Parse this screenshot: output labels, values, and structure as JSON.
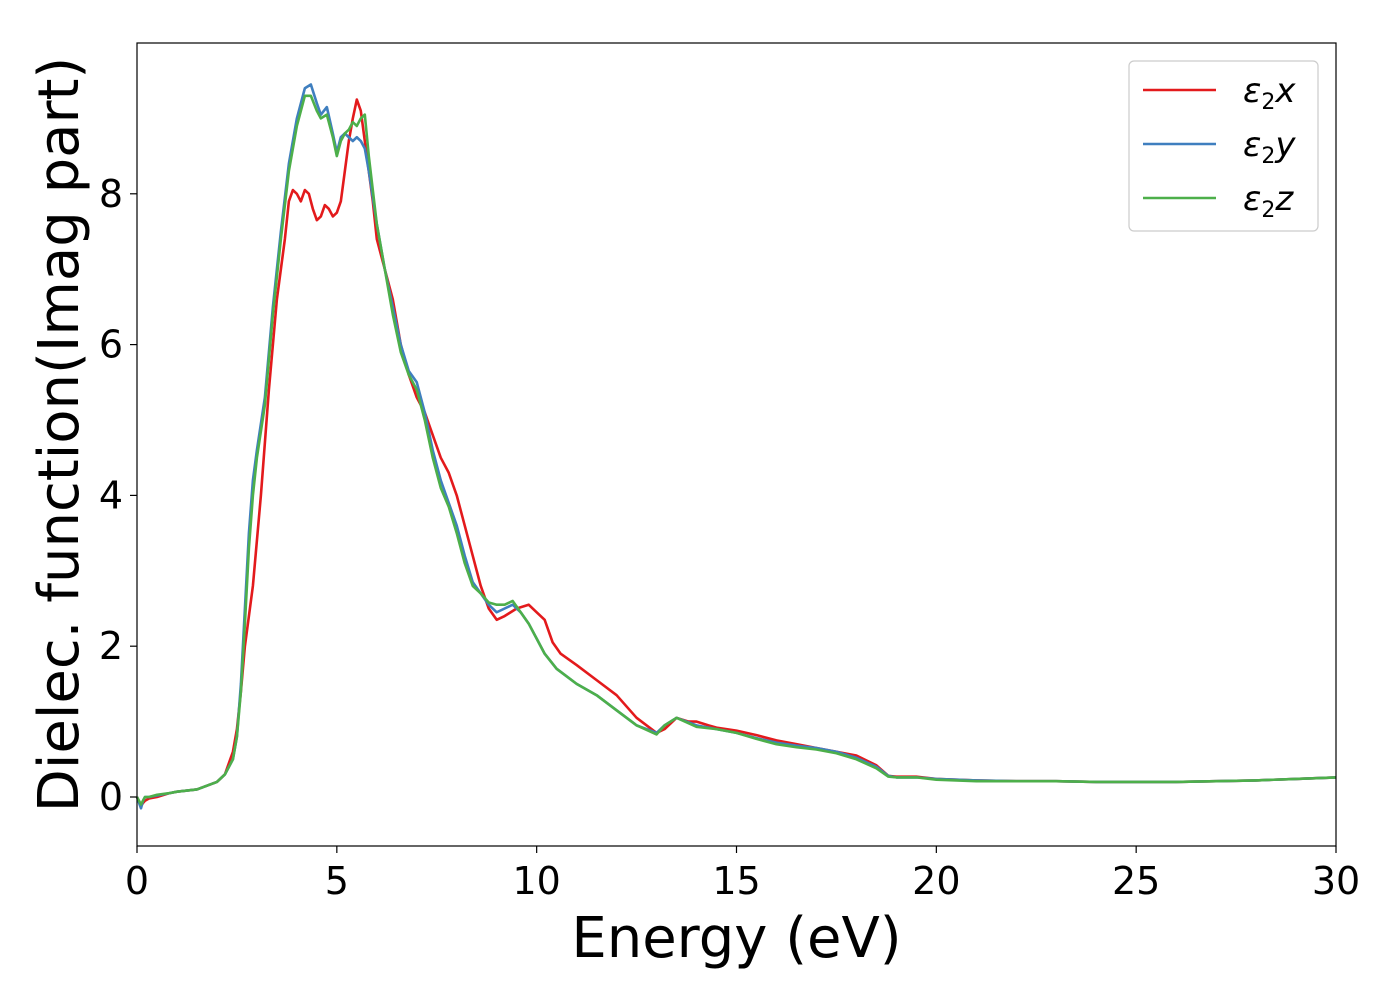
{
  "chart_data": {
    "type": "line",
    "title": "",
    "xlabel": "Energy (eV)",
    "ylabel": "Dielec. function(Imag part)",
    "xlim": [
      0,
      30
    ],
    "ylim": [
      -0.65,
      10.0
    ],
    "xticks": [
      0,
      5,
      10,
      15,
      20,
      25,
      30
    ],
    "xtick_labels": [
      "0",
      "5",
      "10",
      "15",
      "20",
      "25",
      "30"
    ],
    "yticks": [
      0,
      2,
      4,
      6,
      8
    ],
    "ytick_labels": [
      "0",
      "2",
      "4",
      "6",
      "8"
    ],
    "grid": false,
    "legend_position": "top-right",
    "series": [
      {
        "name": "ε2x",
        "name_main": "ε",
        "name_sub": "2",
        "name_suffix": "x",
        "color": "#e31a1c",
        "x": [
          0,
          0.1,
          0.15,
          0.2,
          0.3,
          0.5,
          0.8,
          1.0,
          1.5,
          2.0,
          2.2,
          2.4,
          2.5,
          2.6,
          2.7,
          2.8,
          2.9,
          3.0,
          3.1,
          3.2,
          3.3,
          3.4,
          3.5,
          3.6,
          3.7,
          3.8,
          3.9,
          4.0,
          4.1,
          4.2,
          4.3,
          4.4,
          4.5,
          4.6,
          4.7,
          4.8,
          4.9,
          5.0,
          5.1,
          5.2,
          5.3,
          5.4,
          5.5,
          5.6,
          5.7,
          5.8,
          5.9,
          6.0,
          6.2,
          6.4,
          6.6,
          6.8,
          7.0,
          7.2,
          7.4,
          7.6,
          7.8,
          8.0,
          8.2,
          8.4,
          8.6,
          8.8,
          9.0,
          9.2,
          9.5,
          9.8,
          10.0,
          10.2,
          10.4,
          10.6,
          11.0,
          11.5,
          12.0,
          12.5,
          13.0,
          13.2,
          13.5,
          13.8,
          14.0,
          14.3,
          14.5,
          15.0,
          15.5,
          16.0,
          16.5,
          17.0,
          17.5,
          18.0,
          18.5,
          18.8,
          19.0,
          19.5,
          20.0,
          21.0,
          22.0,
          23.0,
          24.0,
          25.0,
          26.0,
          27.0,
          28.0,
          29.0,
          30.0
        ],
        "y": [
          0.0,
          -0.12,
          -0.08,
          -0.05,
          -0.02,
          0.0,
          0.05,
          0.07,
          0.1,
          0.2,
          0.3,
          0.6,
          0.9,
          1.4,
          2.0,
          2.4,
          2.8,
          3.4,
          4.0,
          4.7,
          5.4,
          6.0,
          6.6,
          7.0,
          7.4,
          7.9,
          8.05,
          8.0,
          7.9,
          8.05,
          8.0,
          7.8,
          7.65,
          7.7,
          7.85,
          7.8,
          7.7,
          7.75,
          7.9,
          8.3,
          8.7,
          9.0,
          9.25,
          9.1,
          8.7,
          8.3,
          7.9,
          7.4,
          7.0,
          6.6,
          6.0,
          5.6,
          5.3,
          5.1,
          4.8,
          4.5,
          4.3,
          4.0,
          3.6,
          3.2,
          2.8,
          2.5,
          2.35,
          2.4,
          2.5,
          2.55,
          2.45,
          2.35,
          2.05,
          1.9,
          1.75,
          1.55,
          1.35,
          1.05,
          0.85,
          0.9,
          1.05,
          1.0,
          1.0,
          0.95,
          0.92,
          0.88,
          0.82,
          0.75,
          0.7,
          0.65,
          0.6,
          0.55,
          0.42,
          0.28,
          0.27,
          0.27,
          0.24,
          0.22,
          0.21,
          0.21,
          0.2,
          0.2,
          0.2,
          0.21,
          0.22,
          0.24,
          0.26
        ]
      },
      {
        "name": "ε2y",
        "name_main": "ε",
        "name_sub": "2",
        "name_suffix": "y",
        "color": "#3f7fbf",
        "x": [
          0,
          0.1,
          0.15,
          0.2,
          0.3,
          0.5,
          0.8,
          1.0,
          1.5,
          2.0,
          2.2,
          2.4,
          2.5,
          2.6,
          2.7,
          2.8,
          2.9,
          3.0,
          3.2,
          3.4,
          3.6,
          3.8,
          4.0,
          4.2,
          4.35,
          4.5,
          4.6,
          4.75,
          4.9,
          5.0,
          5.1,
          5.2,
          5.3,
          5.4,
          5.5,
          5.6,
          5.7,
          5.8,
          6.0,
          6.2,
          6.4,
          6.6,
          6.8,
          7.0,
          7.2,
          7.4,
          7.6,
          7.8,
          8.0,
          8.2,
          8.4,
          8.6,
          8.8,
          9.0,
          9.2,
          9.4,
          9.6,
          9.8,
          10.0,
          10.2,
          10.5,
          11.0,
          11.5,
          12.0,
          12.5,
          13.0,
          13.2,
          13.5,
          14.0,
          14.5,
          15.0,
          15.5,
          16.0,
          16.5,
          17.0,
          17.5,
          18.0,
          18.5,
          18.8,
          19.0,
          19.5,
          20.0,
          21.0,
          22.0,
          23.0,
          24.0,
          25.0,
          26.0,
          27.0,
          28.0,
          29.0,
          30.0
        ],
        "y": [
          0.0,
          -0.15,
          -0.05,
          0.0,
          0.0,
          0.02,
          0.05,
          0.07,
          0.1,
          0.2,
          0.3,
          0.5,
          0.8,
          1.5,
          2.5,
          3.5,
          4.2,
          4.6,
          5.3,
          6.5,
          7.5,
          8.4,
          9.0,
          9.4,
          9.45,
          9.2,
          9.05,
          9.15,
          8.8,
          8.55,
          8.75,
          8.8,
          8.75,
          8.7,
          8.75,
          8.7,
          8.6,
          8.3,
          7.6,
          7.0,
          6.5,
          6.0,
          5.65,
          5.5,
          5.1,
          4.6,
          4.2,
          3.9,
          3.6,
          3.2,
          2.85,
          2.7,
          2.55,
          2.45,
          2.5,
          2.55,
          2.45,
          2.3,
          2.1,
          1.9,
          1.7,
          1.5,
          1.35,
          1.15,
          0.95,
          0.85,
          0.95,
          1.05,
          0.95,
          0.9,
          0.85,
          0.78,
          0.72,
          0.68,
          0.65,
          0.6,
          0.52,
          0.4,
          0.28,
          0.26,
          0.26,
          0.24,
          0.22,
          0.21,
          0.21,
          0.2,
          0.2,
          0.2,
          0.21,
          0.22,
          0.24,
          0.26
        ]
      },
      {
        "name": "ε2z",
        "name_main": "ε",
        "name_sub": "2",
        "name_suffix": "z",
        "color": "#4daf4a",
        "x": [
          0,
          0.1,
          0.15,
          0.2,
          0.3,
          0.5,
          0.8,
          1.0,
          1.5,
          2.0,
          2.2,
          2.4,
          2.5,
          2.6,
          2.7,
          2.8,
          2.9,
          3.0,
          3.2,
          3.4,
          3.6,
          3.8,
          4.0,
          4.2,
          4.35,
          4.5,
          4.6,
          4.75,
          4.9,
          5.0,
          5.1,
          5.2,
          5.3,
          5.4,
          5.5,
          5.6,
          5.7,
          5.8,
          6.0,
          6.2,
          6.4,
          6.6,
          6.8,
          7.0,
          7.2,
          7.4,
          7.6,
          7.8,
          8.0,
          8.2,
          8.4,
          8.6,
          8.8,
          9.0,
          9.2,
          9.4,
          9.6,
          9.8,
          10.0,
          10.2,
          10.5,
          11.0,
          11.5,
          12.0,
          12.5,
          13.0,
          13.2,
          13.5,
          14.0,
          14.5,
          15.0,
          15.5,
          16.0,
          16.5,
          17.0,
          17.5,
          18.0,
          18.5,
          18.8,
          19.0,
          19.5,
          20.0,
          21.0,
          22.0,
          23.0,
          24.0,
          25.0,
          26.0,
          27.0,
          28.0,
          29.0,
          30.0
        ],
        "y": [
          0.0,
          -0.1,
          -0.05,
          0.0,
          0.0,
          0.03,
          0.05,
          0.07,
          0.1,
          0.2,
          0.3,
          0.5,
          0.8,
          1.4,
          2.3,
          3.3,
          4.0,
          4.5,
          5.2,
          6.4,
          7.4,
          8.3,
          8.9,
          9.3,
          9.3,
          9.1,
          9.0,
          9.05,
          8.75,
          8.5,
          8.7,
          8.8,
          8.85,
          8.95,
          8.9,
          9.0,
          9.05,
          8.5,
          7.6,
          7.0,
          6.4,
          5.9,
          5.6,
          5.4,
          5.0,
          4.5,
          4.1,
          3.85,
          3.5,
          3.1,
          2.8,
          2.7,
          2.58,
          2.55,
          2.55,
          2.6,
          2.45,
          2.3,
          2.1,
          1.9,
          1.7,
          1.5,
          1.35,
          1.15,
          0.95,
          0.83,
          0.95,
          1.05,
          0.93,
          0.9,
          0.85,
          0.77,
          0.7,
          0.66,
          0.63,
          0.58,
          0.5,
          0.38,
          0.27,
          0.26,
          0.26,
          0.23,
          0.21,
          0.21,
          0.21,
          0.2,
          0.2,
          0.2,
          0.21,
          0.22,
          0.24,
          0.26
        ]
      }
    ]
  }
}
